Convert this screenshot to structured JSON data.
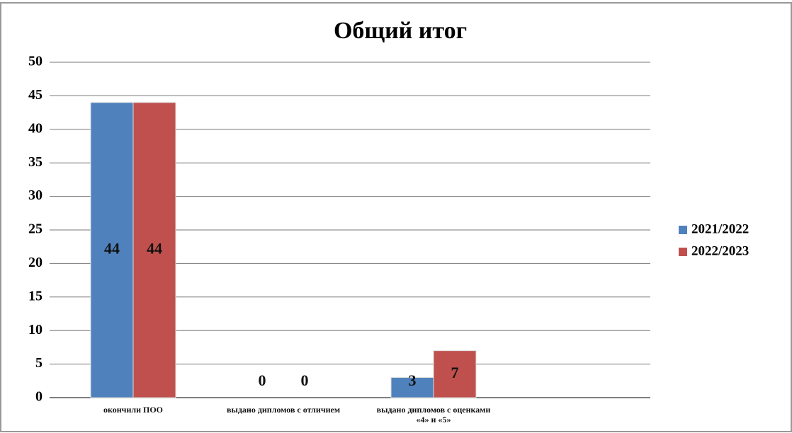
{
  "chart_data": {
    "type": "bar",
    "title": "Общий итог",
    "categories": [
      "окончили ПОО",
      "выдано дипломов с отличием",
      "выдано дипломов с оценками «4» и «5»",
      null
    ],
    "series": [
      {
        "name": "2021/2022",
        "color": "#4f81bd",
        "values": [
          44,
          0,
          3,
          null
        ]
      },
      {
        "name": "2022/2023",
        "color": "#c0504d",
        "values": [
          44,
          0,
          7,
          null
        ]
      }
    ],
    "ylim": [
      0,
      50
    ],
    "yticks": [
      0,
      5,
      10,
      15,
      20,
      25,
      30,
      35,
      40,
      45,
      50
    ],
    "grid": true,
    "legend": "right"
  }
}
